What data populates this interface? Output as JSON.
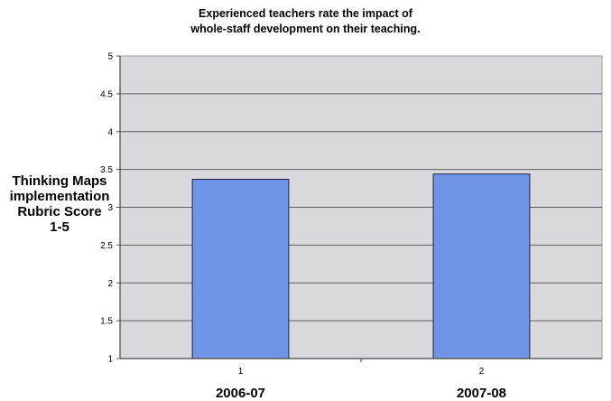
{
  "chart_data": {
    "type": "bar",
    "title_lines": [
      "Experienced teachers rate the impact of",
      "whole-staff development on their teaching."
    ],
    "ylabel_lines": [
      "Thinking Maps",
      "implementation",
      "Rubric Score",
      "1-5"
    ],
    "xlabel": "",
    "categories": [
      "1",
      "2"
    ],
    "category_sublabels": [
      "2006-07",
      "2007-08"
    ],
    "values": [
      3.37,
      3.44
    ],
    "ylim": [
      1,
      5
    ],
    "yticks": [
      "1",
      "1.5",
      "2",
      "2.5",
      "3",
      "3.5",
      "4",
      "4.5",
      "5"
    ],
    "grid": true,
    "bar_color": "#6f95e6",
    "plot_background": "#d9d9dd"
  }
}
